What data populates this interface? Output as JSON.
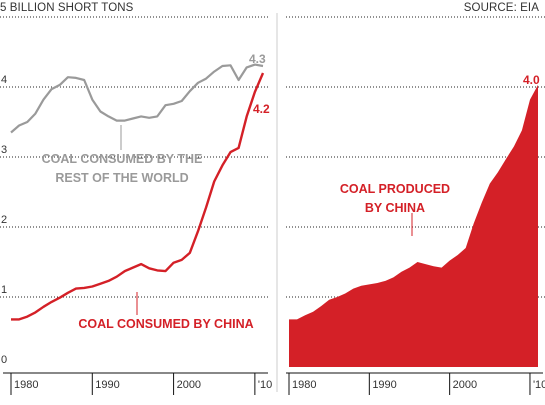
{
  "header": {
    "ylabel": "5 BILLION SHORT TONS",
    "source": "SOURCE: EIA"
  },
  "colors": {
    "china": "#d42027",
    "world": "#9a9a9a",
    "grid": "#222222",
    "axis_text": "#333333"
  },
  "chart_data": [
    {
      "type": "line",
      "title": "",
      "xlabel": "",
      "ylabel": "5 BILLION SHORT TONS",
      "xlim": [
        1980,
        2011
      ],
      "ylim": [
        0,
        5
      ],
      "grid": true,
      "y_ticks": [
        "0",
        "1",
        "2",
        "3",
        "4"
      ],
      "x_ticks": [
        "1980",
        "1990",
        "2000",
        "'10"
      ],
      "x": [
        1980,
        1981,
        1982,
        1983,
        1984,
        1985,
        1986,
        1987,
        1988,
        1989,
        1990,
        1991,
        1992,
        1993,
        1994,
        1995,
        1996,
        1997,
        1998,
        1999,
        2000,
        2001,
        2002,
        2003,
        2004,
        2005,
        2006,
        2007,
        2008,
        2009,
        2010,
        2011
      ],
      "series": [
        {
          "name": "COAL CONSUMED BY THE REST OF THE WORLD",
          "label_lines": [
            "COAL CONSUMED BY THE",
            "REST OF THE WORLD"
          ],
          "end_label": "4.3",
          "values": [
            3.35,
            3.45,
            3.5,
            3.62,
            3.82,
            3.97,
            4.03,
            4.14,
            4.13,
            4.1,
            3.82,
            3.65,
            3.58,
            3.52,
            3.52,
            3.55,
            3.58,
            3.56,
            3.58,
            3.74,
            3.76,
            3.8,
            3.94,
            4.06,
            4.12,
            4.22,
            4.3,
            4.31,
            4.1,
            4.28,
            4.32,
            4.3
          ]
        },
        {
          "name": "COAL CONSUMED BY CHINA",
          "label_lines": [
            "COAL CONSUMED BY CHINA"
          ],
          "end_label": "4.2",
          "values": [
            0.68,
            0.68,
            0.72,
            0.78,
            0.86,
            0.93,
            0.99,
            1.06,
            1.12,
            1.13,
            1.15,
            1.19,
            1.23,
            1.29,
            1.37,
            1.42,
            1.47,
            1.41,
            1.38,
            1.37,
            1.49,
            1.53,
            1.63,
            1.94,
            2.28,
            2.65,
            2.88,
            3.07,
            3.13,
            3.58,
            3.93,
            4.2
          ]
        }
      ]
    },
    {
      "type": "area",
      "title": "",
      "xlabel": "",
      "ylabel": "",
      "xlim": [
        1980,
        2011
      ],
      "ylim": [
        0,
        5
      ],
      "grid": true,
      "x_ticks": [
        "1980",
        "1990",
        "2000",
        "'10"
      ],
      "x": [
        1980,
        1981,
        1982,
        1983,
        1984,
        1985,
        1986,
        1987,
        1988,
        1989,
        1990,
        1991,
        1992,
        1993,
        1994,
        1995,
        1996,
        1997,
        1998,
        1999,
        2000,
        2001,
        2002,
        2003,
        2004,
        2005,
        2006,
        2007,
        2008,
        2009,
        2010,
        2011
      ],
      "series": [
        {
          "name": "COAL PRODUCED BY CHINA",
          "label_lines": [
            "COAL PRODUCED",
            "BY CHINA"
          ],
          "end_label": "4.0",
          "values": [
            0.68,
            0.68,
            0.74,
            0.79,
            0.87,
            0.96,
            1.0,
            1.05,
            1.12,
            1.16,
            1.18,
            1.2,
            1.23,
            1.28,
            1.36,
            1.42,
            1.5,
            1.47,
            1.44,
            1.42,
            1.52,
            1.6,
            1.7,
            2.05,
            2.35,
            2.62,
            2.78,
            2.97,
            3.15,
            3.38,
            3.82,
            4.03
          ]
        }
      ]
    }
  ]
}
